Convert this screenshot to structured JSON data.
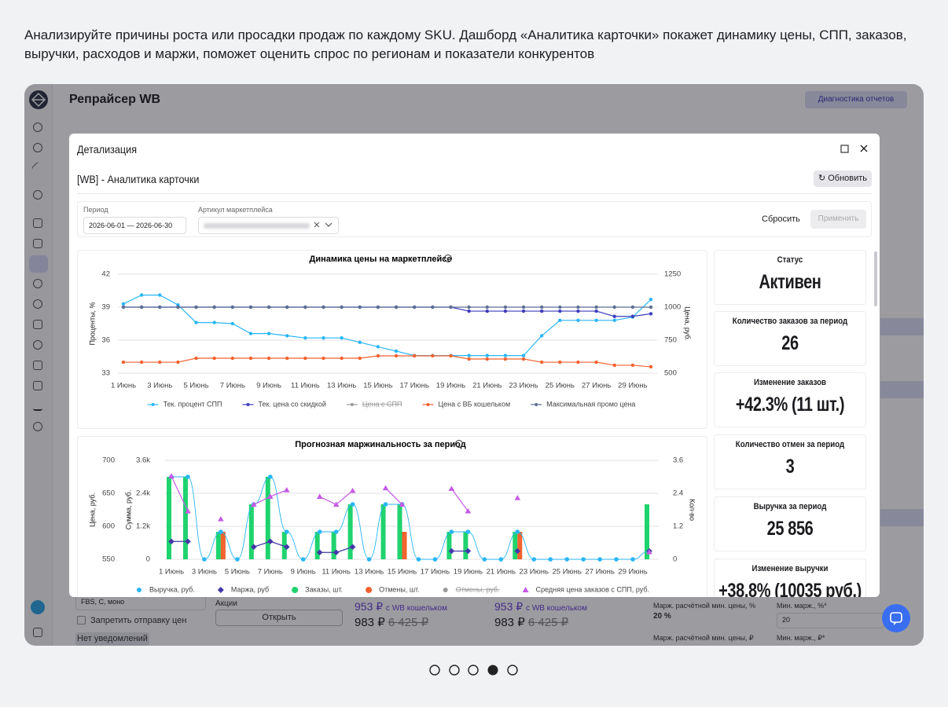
{
  "caption": "Анализируйте причины роста или просадки продаж по каждому SKU. Дашборд «Аналитика карточки» покажет динамику цены, СПП, заказов, выручки, расходов и маржи, поможет оценить спрос по регионам и показатели конкурентов",
  "app": {
    "title": "Репрайсер WB",
    "diagnostics": "Диагностика отчетов",
    "scheme": "FBS, C, моно",
    "forbid": "Запретить отправку цен",
    "notifications": "Нет уведомлений",
    "promo_label": "Акции",
    "open": "Открыть",
    "prices": [
      {
        "wallet": "953 ₽",
        "wallet_note": "с WB кошельком",
        "price": "983 ₽",
        "old": "6 425 ₽"
      },
      {
        "wallet": "953 ₽",
        "wallet_note": "с WB кошельком",
        "price": "983 ₽",
        "old": "6 425 ₽"
      }
    ],
    "margin_pct_label": "Марж. расчётной мин. цены, %",
    "margin_pct": "20 %",
    "min_margin_pct_label": "Мин. марж., %*",
    "min_margin_pct": "20",
    "margin_rub_label": "Марж. расчётной мин. цены, ₽",
    "min_margin_rub_label": "Мин. марж., ₽*"
  },
  "modal": {
    "title": "Детализация",
    "subtitle": "[WB] - Аналитика карточки",
    "refresh": "Обновить",
    "period_label": "Период",
    "period_value": "2026-06-01 — 2026-06-30",
    "article_label": "Артикул маркетплейса",
    "reset": "Сбросить",
    "apply": "Применить"
  },
  "cards": [
    {
      "title": "Статус",
      "value": "Активен"
    },
    {
      "title": "Количество заказов за период",
      "value": "26"
    },
    {
      "title": "Изменение заказов",
      "value": "+42.3% (11 шт.)"
    },
    {
      "title": "Количество отмен за период",
      "value": "3"
    },
    {
      "title": "Выручка за период",
      "value": "25 856"
    },
    {
      "title": "Изменение выручки",
      "value": "+38.8% (10035 руб.)"
    }
  ],
  "chart_data": [
    {
      "type": "line",
      "title": "Динамика цены на маркетплейсе",
      "ylabel": "Проценты, %",
      "y2label": "Цена, руб.",
      "categories": [
        "1 Июнь",
        null,
        "3 Июнь",
        null,
        "5 Июнь",
        null,
        "7 Июнь",
        null,
        "9 Июнь",
        null,
        "11 Июнь",
        null,
        "13 Июнь",
        null,
        "15 Июнь",
        null,
        "17 Июнь",
        null,
        "19 Июнь",
        null,
        "21 Июнь",
        null,
        "23 Июнь",
        null,
        "25 Июнь",
        null,
        "27 Июнь",
        null,
        "29 Июнь",
        null
      ],
      "ylim": [
        33,
        42
      ],
      "yticks": [
        33,
        36,
        39,
        42
      ],
      "y2lim": [
        500,
        1250
      ],
      "y2ticks": [
        500,
        750,
        1000,
        1250
      ],
      "grid": true,
      "series": [
        {
          "name": "Тек. процент СПП",
          "color": "#29b6f6",
          "axis": "y",
          "type": "line",
          "marker": "circle",
          "values": [
            39.3,
            40.1,
            40.1,
            39.2,
            37.6,
            37.6,
            37.5,
            36.6,
            36.6,
            36.4,
            36.2,
            36.2,
            36.2,
            35.8,
            35.4,
            35.0,
            34.6,
            34.6,
            34.6,
            34.6,
            34.6,
            34.6,
            34.6,
            36.4,
            37.8,
            37.8,
            37.8,
            37.8,
            38.1,
            39.7
          ]
        },
        {
          "name": "Тек. цена со скидкой",
          "color": "#3d3dbd",
          "axis": "y2",
          "type": "line",
          "marker": "circle",
          "values": [
            1000,
            1000,
            1000,
            1000,
            1000,
            1000,
            1000,
            1000,
            1000,
            1000,
            1000,
            1000,
            1000,
            1000,
            1000,
            1000,
            1000,
            1000,
            1000,
            970,
            970,
            970,
            970,
            970,
            970,
            970,
            970,
            930,
            930,
            950
          ]
        },
        {
          "name": "Цена с СПП",
          "color": "#555555",
          "axis": "y2",
          "type": "line",
          "marker": "circle",
          "hidden": true
        },
        {
          "name": "Цена с ВБ кошельком",
          "color": "#f4622e",
          "axis": "y2",
          "type": "line",
          "marker": "circle",
          "values": [
            583,
            583,
            583,
            583,
            613,
            613,
            613,
            613,
            613,
            613,
            613,
            613,
            613,
            613,
            631,
            631,
            631,
            631,
            631,
            607,
            607,
            607,
            607,
            583,
            583,
            583,
            583,
            560,
            560,
            548
          ]
        },
        {
          "name": "Максимальная промо цена",
          "color": "#5c6f94",
          "axis": "y2",
          "type": "line",
          "marker": "circle",
          "values": [
            1000,
            1000,
            1000,
            1000,
            1000,
            1000,
            1000,
            1000,
            1000,
            1000,
            1000,
            1000,
            1000,
            1000,
            1000,
            1000,
            1000,
            1000,
            1000,
            1000,
            1000,
            1000,
            1000,
            1000,
            1000,
            1000,
            1000,
            1000,
            1000,
            1000
          ]
        }
      ]
    },
    {
      "type": "combo",
      "title": "Прогнозная маржинальность за период",
      "ylabel": "Цена, руб.",
      "y2label": "Сумма, руб.",
      "y3label": "Кол-во",
      "categories": [
        "1 Июнь",
        null,
        "3 Июнь",
        null,
        "5 Июнь",
        null,
        "7 Июнь",
        null,
        "9 Июнь",
        null,
        "11 Июнь",
        null,
        "13 Июнь",
        null,
        "15 Июнь",
        null,
        "17 Июнь",
        null,
        "19 Июнь",
        null,
        "21 Июнь",
        null,
        "23 Июнь",
        null,
        "25 Июнь",
        null,
        "27 Июнь",
        null,
        "29 Июнь",
        null
      ],
      "ylim": [
        550,
        700
      ],
      "yticks": [
        550,
        600,
        650,
        700
      ],
      "y2lim": [
        0,
        3600
      ],
      "y2ticks": [
        0,
        {
          "value": 1200,
          "label": "1.2k"
        },
        {
          "value": 2400,
          "label": "2.4k"
        },
        {
          "value": 3600,
          "label": "3.6k"
        }
      ],
      "y3lim": [
        0,
        3.6
      ],
      "y3ticks": [
        0,
        1.2,
        2.4,
        3.6
      ],
      "grid": true,
      "series": [
        {
          "name": "Выручка, руб.",
          "color": "#29b6f6",
          "axis": "y2",
          "type": "spline",
          "marker": "circle",
          "values": [
            3000,
            3000,
            0,
            1000,
            0,
            2000,
            3000,
            1000,
            0,
            1000,
            1000,
            2000,
            0,
            2000,
            2000,
            0,
            0,
            1000,
            1000,
            0,
            0,
            1000,
            0,
            0,
            0,
            0,
            0,
            0,
            0,
            300
          ]
        },
        {
          "name": "Маржа, руб",
          "color": "#4338a8",
          "axis": "y2",
          "type": "line",
          "marker": "diamond",
          "values": [
            650,
            650,
            null,
            null,
            null,
            450,
            650,
            450,
            null,
            250,
            250,
            450,
            null,
            null,
            null,
            null,
            null,
            300,
            300,
            null,
            null,
            300,
            null,
            null,
            null,
            null,
            null,
            null,
            null,
            300
          ]
        },
        {
          "name": "Заказы, шт.",
          "color": "#1fd36e",
          "axis": "y3",
          "type": "bar",
          "values": [
            3,
            3,
            0,
            1,
            0,
            2,
            3,
            1,
            0,
            1,
            1,
            2,
            0,
            2,
            2,
            0,
            0,
            1,
            1,
            0,
            0,
            1,
            0,
            0,
            0,
            0,
            0,
            0,
            0,
            2
          ]
        },
        {
          "name": "Отмены, шт.",
          "color": "#f4622e",
          "axis": "y3",
          "type": "bar",
          "values": [
            0,
            0,
            0,
            1,
            0,
            0,
            0,
            0,
            0,
            0,
            0,
            0,
            0,
            0,
            1,
            0,
            0,
            0,
            0,
            0,
            0,
            1,
            0,
            0,
            0,
            0,
            0,
            0,
            0,
            0
          ]
        },
        {
          "name": "Отмены, руб.",
          "color": "#555555",
          "axis": "y2",
          "type": "line",
          "marker": "circle",
          "hidden": true
        },
        {
          "name": "Средняя цена заказов с СПП, руб.",
          "color": "#c659e6",
          "axis": "y",
          "type": "line",
          "marker": "triangle",
          "values": [
            676,
            623,
            null,
            611,
            null,
            633,
            645,
            655,
            null,
            645,
            633,
            654,
            null,
            658,
            633,
            null,
            null,
            657,
            623,
            null,
            null,
            643,
            null,
            null,
            null,
            null,
            null,
            null,
            null,
            561
          ]
        }
      ]
    }
  ]
}
